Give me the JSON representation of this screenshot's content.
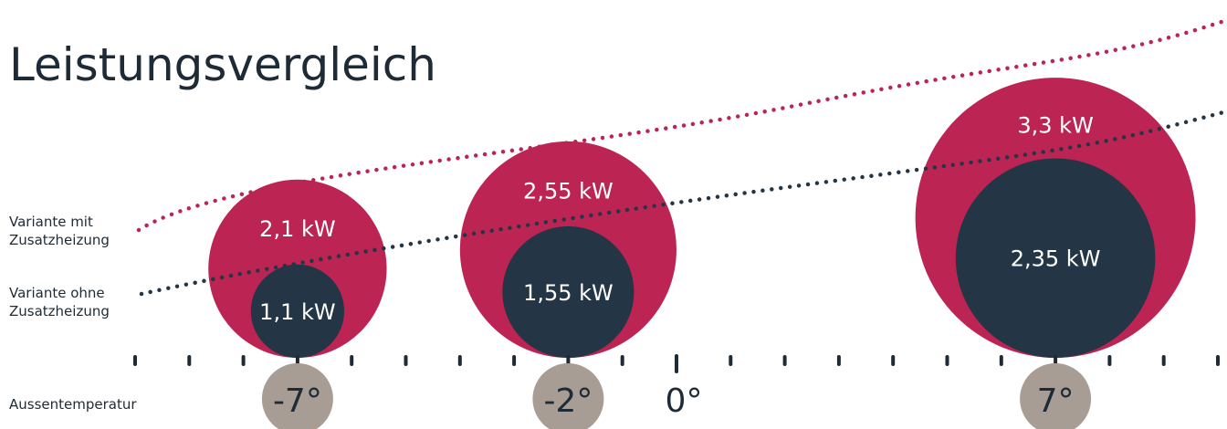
{
  "chart_data": {
    "type": "bubble",
    "title": "Leistungsvergleich",
    "legend": [
      "Variante mit Zusatzheizung",
      "Variante ohne Zusatzheizung"
    ],
    "axis_label": "Aussentemperatur",
    "x_unit": "°C",
    "xlim": [
      -10,
      10
    ],
    "zero_label": "0°",
    "series": [
      {
        "name": "Variante mit Zusatzheizung",
        "color": "#bb2453",
        "points": [
          {
            "x": -7,
            "x_label": "-7°",
            "kw": 2.1,
            "label": "2,1 kW"
          },
          {
            "x": -2,
            "x_label": "-2°",
            "kw": 2.55,
            "label": "2,55 kW"
          },
          {
            "x": 7,
            "x_label": "7°",
            "kw": 3.3,
            "label": "3,3 kW"
          }
        ]
      },
      {
        "name": "Variante ohne Zusatzheizung",
        "color": "#243646",
        "points": [
          {
            "x": -7,
            "kw": 1.1,
            "label": "1,1 kW"
          },
          {
            "x": -2,
            "kw": 1.55,
            "label": "1,55 kW"
          },
          {
            "x": 7,
            "kw": 2.35,
            "label": "2,35 kW"
          }
        ]
      }
    ],
    "marker_color": "#a89d94",
    "tick_step": 1
  }
}
